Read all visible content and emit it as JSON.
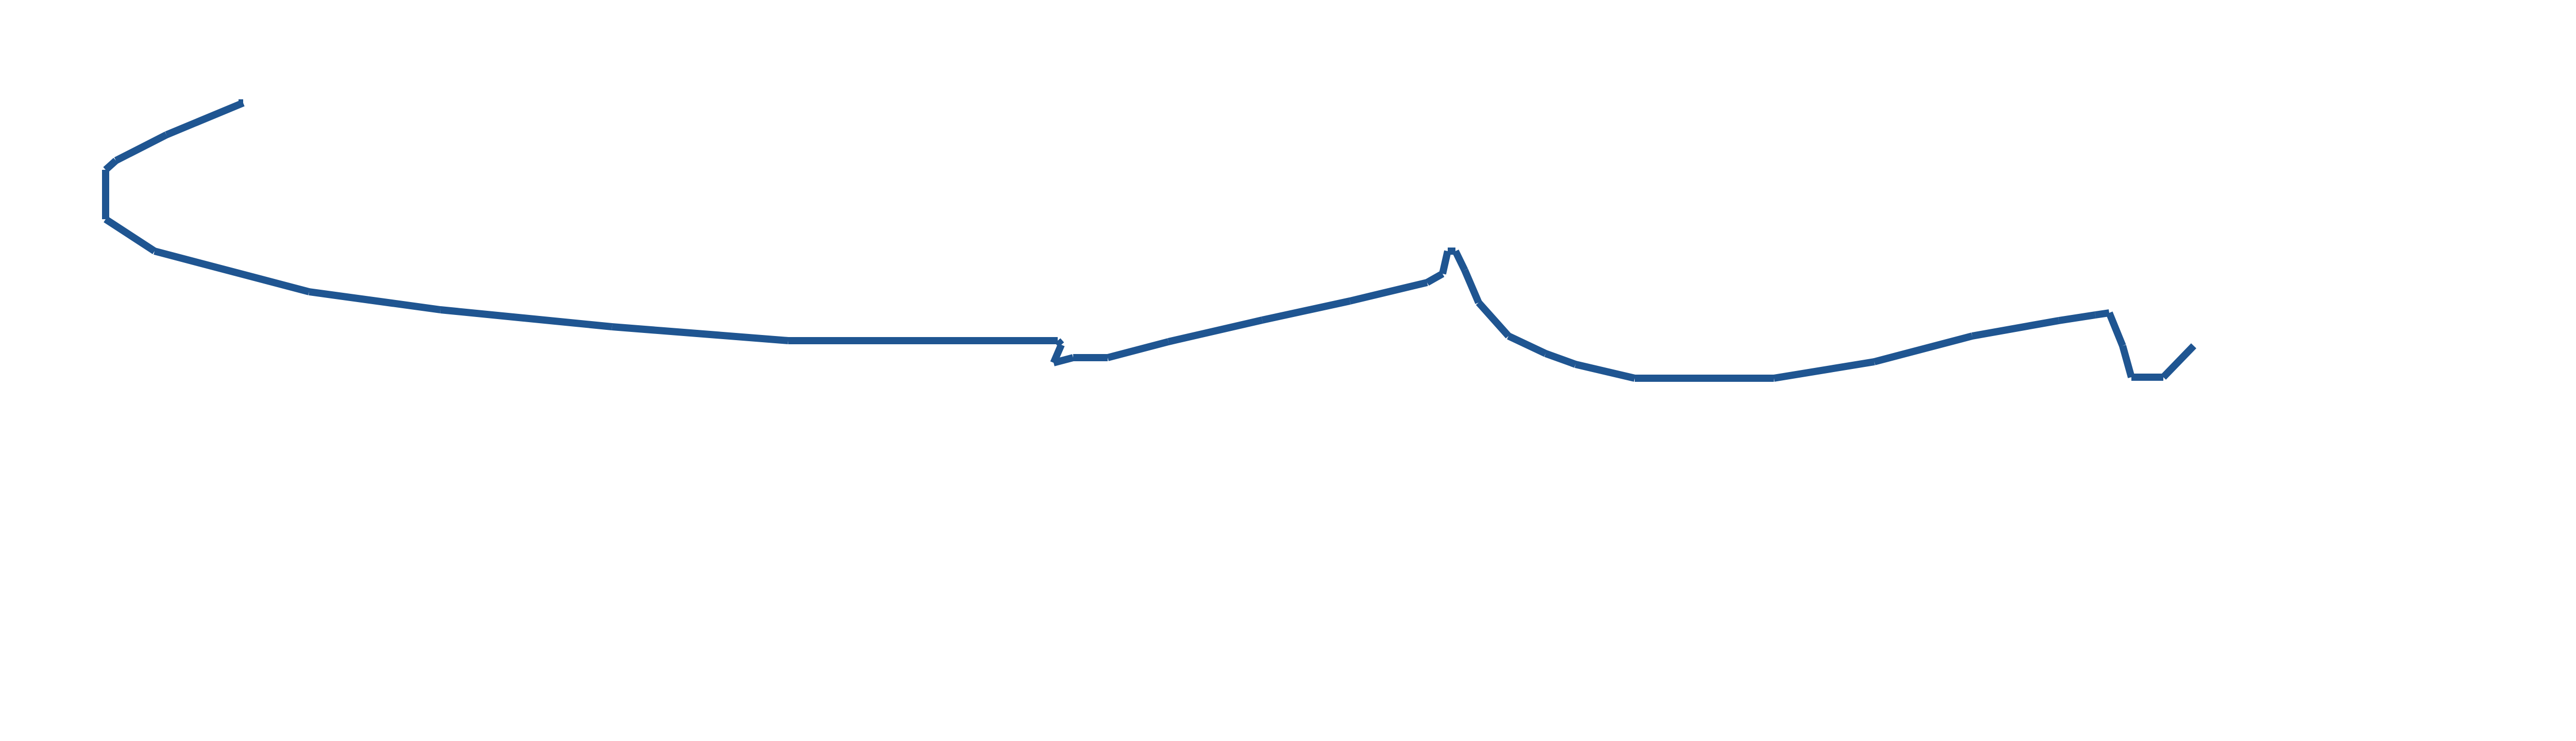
{
  "chart_data": {
    "type": "line",
    "title": "",
    "xlabel": "",
    "ylabel": "",
    "grid": false,
    "legend": "none",
    "axes_visible": false,
    "xlim": [
      0,
      5040
    ],
    "ylim": [
      0,
      1440
    ],
    "line_color": "#1f5591",
    "background_color": "#ffffff",
    "series": [
      {
        "x": [
          463,
          472,
          323,
          225,
          205,
          205,
          300,
          600,
          855,
          1188,
          1530,
          2053,
          2060,
          2045,
          2083,
          2150,
          2268,
          2450,
          2620,
          2770,
          2800,
          2810,
          2825,
          2843,
          2870,
          2928,
          3000,
          3058,
          3173,
          3443,
          3638,
          3828,
          3996,
          4067,
          4094,
          4120,
          4137,
          4199,
          4258
        ],
        "y": [
          1240,
          1240,
          1178,
          1128,
          1110,
          1014,
          952,
          873,
          838,
          805,
          778,
          778,
          770,
          735,
          745,
          745,
          776,
          818,
          855,
          891,
          908,
          952,
          952,
          915,
          852,
          787,
          753,
          732,
          705,
          705,
          737,
          787,
          817,
          828,
          832,
          768,
          707,
          707,
          768
        ]
      }
    ]
  }
}
